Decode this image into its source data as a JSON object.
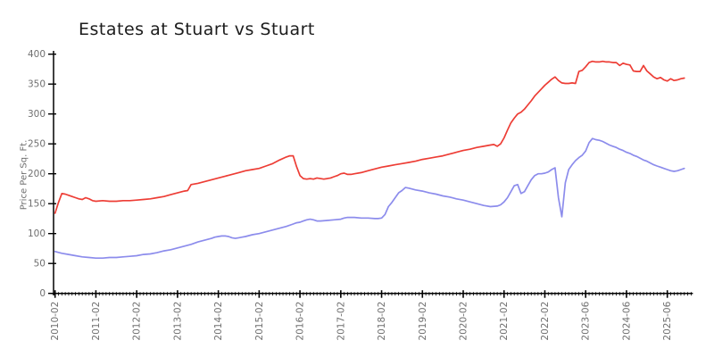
{
  "chart_data": {
    "type": "line",
    "title": "Estates at Stuart vs Stuart",
    "xlabel": "",
    "ylabel": "Price Per Sq. Ft.",
    "grid": false,
    "legend_position": "none",
    "ylim": [
      0,
      400
    ],
    "y_ticks": [
      0,
      50,
      100,
      150,
      200,
      250,
      300,
      350,
      400
    ],
    "x_tick_labels": [
      "2010-02",
      "2011-02",
      "2012-02",
      "2013-02",
      "2014-02",
      "2015-02",
      "2016-02",
      "2017-02",
      "2018-02",
      "2019-02",
      "2020-02",
      "2021-02",
      "2022-02",
      "2023-06",
      "2024-06",
      "2025-06"
    ],
    "x_tick_indices": [
      0,
      12,
      24,
      36,
      48,
      60,
      72,
      84,
      96,
      108,
      120,
      132,
      144,
      156,
      168,
      180
    ],
    "x_minor_tick_every": 1,
    "x_index_range": [
      0,
      187
    ],
    "series": [
      {
        "name": "Estates at Stuart",
        "color": "#ed3d35",
        "points": [
          [
            0,
            134
          ],
          [
            1,
            152
          ],
          [
            2,
            167
          ],
          [
            3,
            166
          ],
          [
            4,
            164
          ],
          [
            5,
            162
          ],
          [
            6,
            160
          ],
          [
            7,
            158
          ],
          [
            8,
            157
          ],
          [
            9,
            160
          ],
          [
            10,
            158
          ],
          [
            11,
            155
          ],
          [
            12,
            154
          ],
          [
            14,
            155
          ],
          [
            16,
            154
          ],
          [
            18,
            154
          ],
          [
            20,
            155
          ],
          [
            22,
            155
          ],
          [
            24,
            156
          ],
          [
            26,
            157
          ],
          [
            28,
            158
          ],
          [
            30,
            160
          ],
          [
            32,
            162
          ],
          [
            34,
            165
          ],
          [
            36,
            168
          ],
          [
            38,
            171
          ],
          [
            39,
            172
          ],
          [
            40,
            182
          ],
          [
            42,
            184
          ],
          [
            44,
            187
          ],
          [
            46,
            190
          ],
          [
            48,
            193
          ],
          [
            50,
            196
          ],
          [
            52,
            199
          ],
          [
            54,
            202
          ],
          [
            56,
            205
          ],
          [
            58,
            207
          ],
          [
            60,
            209
          ],
          [
            62,
            213
          ],
          [
            64,
            217
          ],
          [
            66,
            223
          ],
          [
            68,
            228
          ],
          [
            69,
            230
          ],
          [
            70,
            230
          ],
          [
            71,
            212
          ],
          [
            72,
            197
          ],
          [
            73,
            192
          ],
          [
            74,
            191
          ],
          [
            75,
            192
          ],
          [
            76,
            191
          ],
          [
            77,
            193
          ],
          [
            78,
            192
          ],
          [
            79,
            191
          ],
          [
            80,
            192
          ],
          [
            81,
            193
          ],
          [
            82,
            195
          ],
          [
            83,
            197
          ],
          [
            84,
            200
          ],
          [
            85,
            201
          ],
          [
            86,
            199
          ],
          [
            87,
            199
          ],
          [
            88,
            200
          ],
          [
            90,
            202
          ],
          [
            92,
            205
          ],
          [
            94,
            208
          ],
          [
            96,
            211
          ],
          [
            98,
            213
          ],
          [
            100,
            215
          ],
          [
            102,
            217
          ],
          [
            104,
            219
          ],
          [
            106,
            221
          ],
          [
            108,
            224
          ],
          [
            110,
            226
          ],
          [
            112,
            228
          ],
          [
            114,
            230
          ],
          [
            116,
            233
          ],
          [
            118,
            236
          ],
          [
            120,
            239
          ],
          [
            122,
            241
          ],
          [
            124,
            244
          ],
          [
            126,
            246
          ],
          [
            128,
            248
          ],
          [
            129,
            249
          ],
          [
            130,
            246
          ],
          [
            131,
            250
          ],
          [
            132,
            260
          ],
          [
            133,
            273
          ],
          [
            134,
            285
          ],
          [
            135,
            293
          ],
          [
            136,
            300
          ],
          [
            137,
            303
          ],
          [
            138,
            308
          ],
          [
            139,
            315
          ],
          [
            140,
            322
          ],
          [
            141,
            330
          ],
          [
            142,
            336
          ],
          [
            143,
            342
          ],
          [
            144,
            348
          ],
          [
            145,
            353
          ],
          [
            146,
            358
          ],
          [
            147,
            362
          ],
          [
            148,
            356
          ],
          [
            149,
            352
          ],
          [
            150,
            351
          ],
          [
            151,
            351
          ],
          [
            152,
            352
          ],
          [
            153,
            351
          ],
          [
            154,
            371
          ],
          [
            155,
            373
          ],
          [
            156,
            379
          ],
          [
            157,
            386
          ],
          [
            158,
            388
          ],
          [
            159,
            387
          ],
          [
            160,
            387
          ],
          [
            161,
            388
          ],
          [
            162,
            387
          ],
          [
            163,
            387
          ],
          [
            164,
            386
          ],
          [
            165,
            386
          ],
          [
            166,
            381
          ],
          [
            167,
            385
          ],
          [
            168,
            383
          ],
          [
            169,
            382
          ],
          [
            170,
            372
          ],
          [
            171,
            371
          ],
          [
            172,
            371
          ],
          [
            173,
            381
          ],
          [
            174,
            372
          ],
          [
            175,
            367
          ],
          [
            176,
            362
          ],
          [
            177,
            359
          ],
          [
            178,
            361
          ],
          [
            179,
            357
          ],
          [
            180,
            355
          ],
          [
            181,
            359
          ],
          [
            182,
            356
          ],
          [
            183,
            357
          ],
          [
            184,
            359
          ],
          [
            185,
            360
          ]
        ]
      },
      {
        "name": "Stuart",
        "color": "#8c8cec",
        "points": [
          [
            0,
            70
          ],
          [
            2,
            67
          ],
          [
            4,
            65
          ],
          [
            6,
            63
          ],
          [
            8,
            61
          ],
          [
            10,
            60
          ],
          [
            12,
            59
          ],
          [
            14,
            59
          ],
          [
            16,
            60
          ],
          [
            18,
            60
          ],
          [
            20,
            61
          ],
          [
            22,
            62
          ],
          [
            24,
            63
          ],
          [
            26,
            65
          ],
          [
            28,
            66
          ],
          [
            30,
            68
          ],
          [
            32,
            71
          ],
          [
            34,
            73
          ],
          [
            36,
            76
          ],
          [
            38,
            79
          ],
          [
            40,
            82
          ],
          [
            42,
            86
          ],
          [
            44,
            89
          ],
          [
            46,
            92
          ],
          [
            47,
            94
          ],
          [
            48,
            95
          ],
          [
            49,
            96
          ],
          [
            50,
            96
          ],
          [
            51,
            95
          ],
          [
            52,
            93
          ],
          [
            53,
            92
          ],
          [
            54,
            93
          ],
          [
            55,
            94
          ],
          [
            56,
            95
          ],
          [
            58,
            98
          ],
          [
            60,
            100
          ],
          [
            62,
            103
          ],
          [
            64,
            106
          ],
          [
            66,
            109
          ],
          [
            68,
            112
          ],
          [
            70,
            116
          ],
          [
            71,
            118
          ],
          [
            72,
            119
          ],
          [
            73,
            121
          ],
          [
            74,
            123
          ],
          [
            75,
            124
          ],
          [
            76,
            123
          ],
          [
            77,
            121
          ],
          [
            78,
            121
          ],
          [
            80,
            122
          ],
          [
            82,
            123
          ],
          [
            84,
            124
          ],
          [
            85,
            126
          ],
          [
            86,
            127
          ],
          [
            88,
            127
          ],
          [
            90,
            126
          ],
          [
            92,
            126
          ],
          [
            94,
            125
          ],
          [
            95,
            125
          ],
          [
            96,
            126
          ],
          [
            97,
            132
          ],
          [
            98,
            145
          ],
          [
            99,
            152
          ],
          [
            100,
            160
          ],
          [
            101,
            168
          ],
          [
            102,
            172
          ],
          [
            103,
            177
          ],
          [
            104,
            176
          ],
          [
            106,
            173
          ],
          [
            108,
            171
          ],
          [
            110,
            168
          ],
          [
            112,
            166
          ],
          [
            114,
            163
          ],
          [
            116,
            161
          ],
          [
            118,
            158
          ],
          [
            120,
            156
          ],
          [
            122,
            153
          ],
          [
            124,
            150
          ],
          [
            126,
            147
          ],
          [
            128,
            145
          ],
          [
            130,
            146
          ],
          [
            131,
            148
          ],
          [
            132,
            153
          ],
          [
            133,
            160
          ],
          [
            134,
            170
          ],
          [
            135,
            180
          ],
          [
            136,
            182
          ],
          [
            137,
            167
          ],
          [
            138,
            170
          ],
          [
            139,
            180
          ],
          [
            140,
            190
          ],
          [
            141,
            197
          ],
          [
            142,
            200
          ],
          [
            143,
            200
          ],
          [
            144,
            201
          ],
          [
            145,
            203
          ],
          [
            146,
            207
          ],
          [
            147,
            210
          ],
          [
            148,
            160
          ],
          [
            149,
            128
          ],
          [
            150,
            185
          ],
          [
            151,
            207
          ],
          [
            152,
            215
          ],
          [
            153,
            222
          ],
          [
            154,
            227
          ],
          [
            155,
            231
          ],
          [
            156,
            238
          ],
          [
            157,
            252
          ],
          [
            158,
            259
          ],
          [
            159,
            257
          ],
          [
            160,
            256
          ],
          [
            161,
            254
          ],
          [
            162,
            251
          ],
          [
            163,
            248
          ],
          [
            164,
            246
          ],
          [
            165,
            244
          ],
          [
            166,
            241
          ],
          [
            167,
            239
          ],
          [
            168,
            236
          ],
          [
            169,
            234
          ],
          [
            170,
            231
          ],
          [
            171,
            229
          ],
          [
            172,
            226
          ],
          [
            173,
            223
          ],
          [
            174,
            221
          ],
          [
            175,
            218
          ],
          [
            176,
            215
          ],
          [
            177,
            213
          ],
          [
            178,
            211
          ],
          [
            179,
            209
          ],
          [
            180,
            207
          ],
          [
            181,
            205
          ],
          [
            182,
            204
          ],
          [
            183,
            205
          ],
          [
            184,
            207
          ],
          [
            185,
            209
          ]
        ]
      }
    ],
    "style": {
      "axis_color": "#000000",
      "tick_label_color": "#6f6f6f",
      "title_color": "#1c1c1c",
      "background": "#ffffff"
    }
  }
}
